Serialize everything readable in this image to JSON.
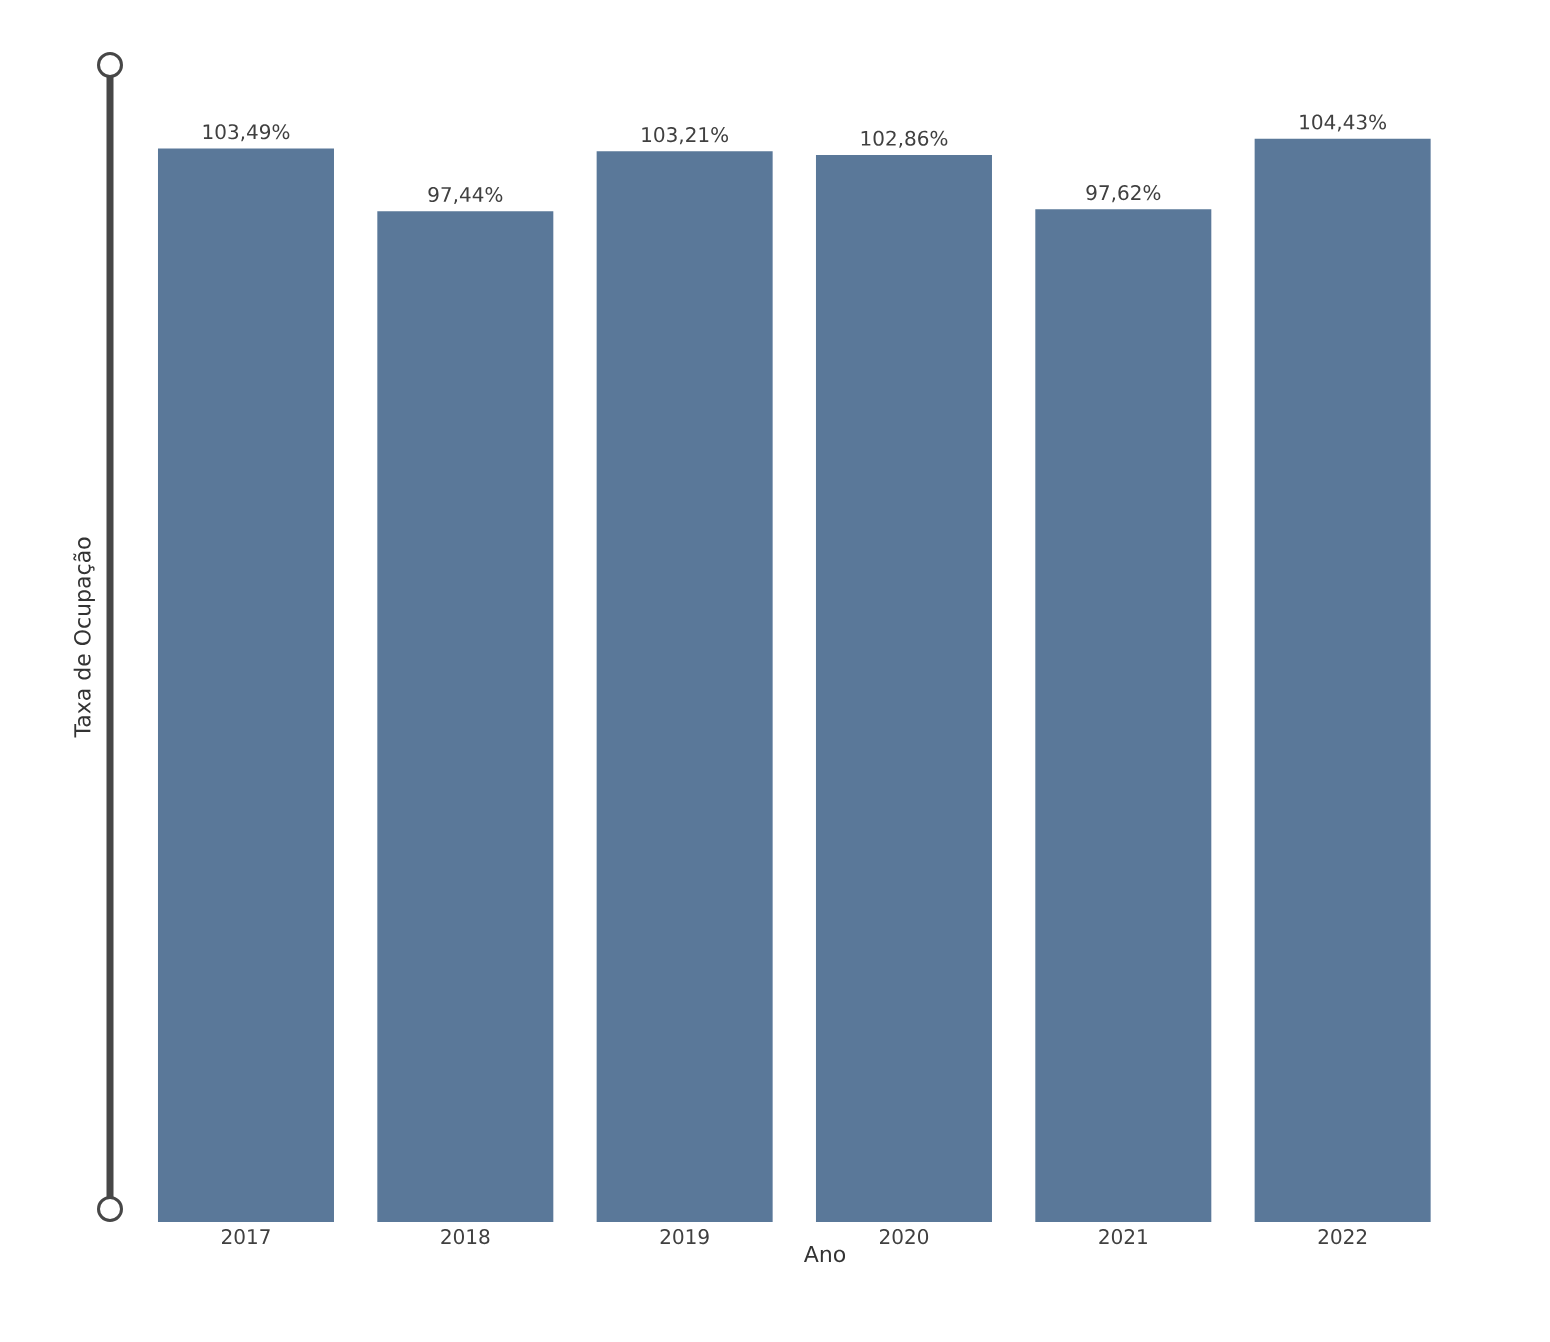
{
  "chart_data": {
    "type": "bar",
    "xlabel": "Ano",
    "ylabel": "Taxa de Ocupação",
    "categories": [
      "2017",
      "2018",
      "2019",
      "2020",
      "2021",
      "2022"
    ],
    "values": [
      103.49,
      97.44,
      103.21,
      102.86,
      97.62,
      104.43
    ],
    "value_labels": [
      "103,49%",
      "97,44%",
      "103,21%",
      "102,86%",
      "97,62%",
      "104,43%"
    ],
    "color": "#5a7899"
  }
}
